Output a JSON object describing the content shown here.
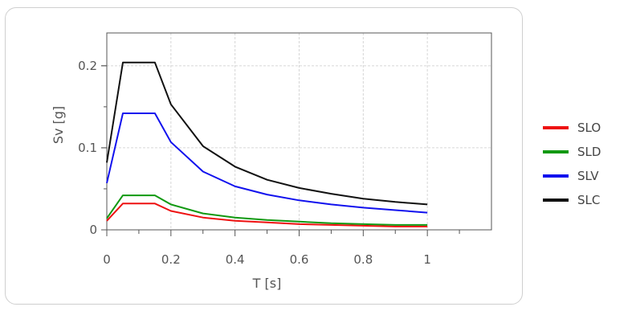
{
  "chart_data": {
    "type": "line",
    "xlabel": "T [s]",
    "ylabel": "Sv [g]",
    "xlim": [
      0,
      1.2
    ],
    "ylim": [
      0,
      0.24
    ],
    "x_ticks": [
      0,
      0.2,
      0.4,
      0.6,
      0.8,
      1
    ],
    "x_tick_labels": [
      "0",
      "0.2",
      "0.4",
      "0.6",
      "0.8",
      "1"
    ],
    "y_ticks": [
      0,
      0.1,
      0.2
    ],
    "y_tick_labels": [
      "0",
      "0.1",
      "0.2"
    ],
    "grid": true,
    "legend_position": "right",
    "series": [
      {
        "name": "SLO",
        "color": "#ee1111",
        "x": [
          0,
          0.05,
          0.15,
          0.2,
          0.3,
          0.4,
          0.5,
          0.6,
          0.7,
          0.8,
          0.9,
          1.0
        ],
        "y": [
          0.011,
          0.032,
          0.032,
          0.023,
          0.015,
          0.011,
          0.009,
          0.007,
          0.006,
          0.005,
          0.004,
          0.004
        ]
      },
      {
        "name": "SLD",
        "color": "#119911",
        "x": [
          0,
          0.05,
          0.15,
          0.2,
          0.3,
          0.4,
          0.5,
          0.6,
          0.7,
          0.8,
          0.9,
          1.0
        ],
        "y": [
          0.014,
          0.042,
          0.042,
          0.031,
          0.02,
          0.015,
          0.012,
          0.01,
          0.008,
          0.007,
          0.006,
          0.006
        ]
      },
      {
        "name": "SLV",
        "color": "#1111ee",
        "x": [
          0,
          0.05,
          0.15,
          0.2,
          0.3,
          0.4,
          0.5,
          0.6,
          0.7,
          0.8,
          0.9,
          1.0
        ],
        "y": [
          0.057,
          0.142,
          0.142,
          0.107,
          0.071,
          0.053,
          0.043,
          0.036,
          0.031,
          0.027,
          0.024,
          0.021
        ]
      },
      {
        "name": "SLC",
        "color": "#111111",
        "x": [
          0,
          0.05,
          0.15,
          0.2,
          0.3,
          0.4,
          0.5,
          0.6,
          0.7,
          0.8,
          0.9,
          1.0
        ],
        "y": [
          0.082,
          0.204,
          0.204,
          0.153,
          0.102,
          0.077,
          0.061,
          0.051,
          0.044,
          0.038,
          0.034,
          0.031
        ]
      }
    ]
  }
}
